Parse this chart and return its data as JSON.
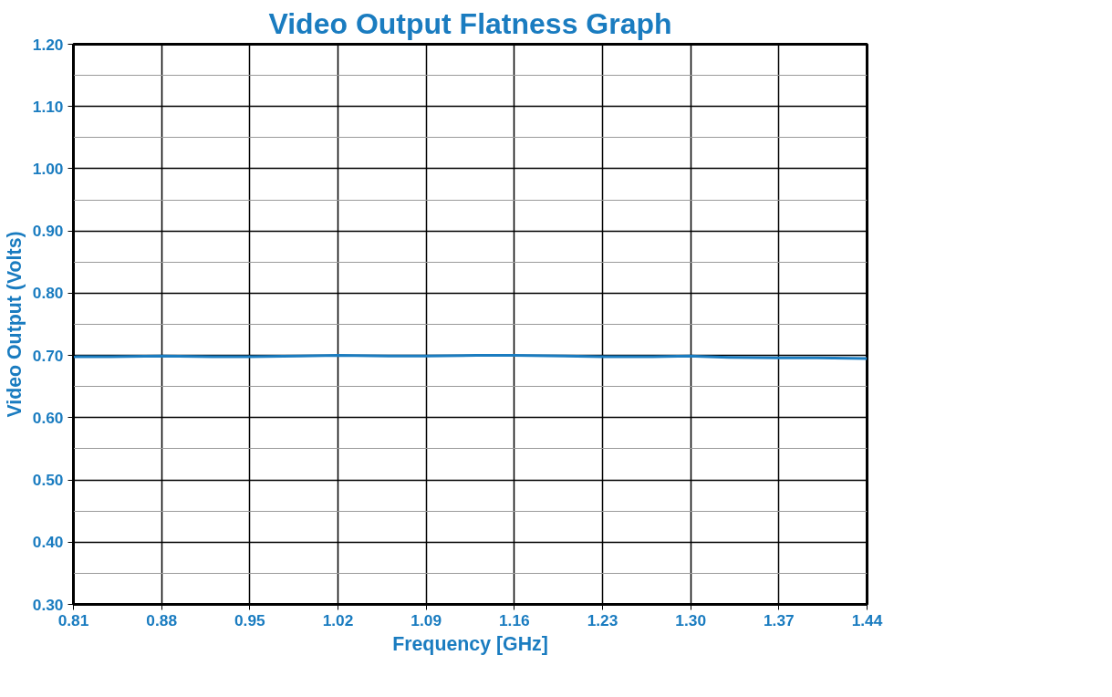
{
  "chart_data": {
    "type": "line",
    "title": "Video Output Flatness Graph",
    "xlabel": "Frequency [GHz]",
    "ylabel": "Video Output (Volts)",
    "x": [
      0.81,
      0.84,
      0.88,
      0.92,
      0.95,
      0.99,
      1.02,
      1.06,
      1.09,
      1.13,
      1.16,
      1.2,
      1.23,
      1.27,
      1.3,
      1.33,
      1.37,
      1.4,
      1.44
    ],
    "series": [
      {
        "color": "#1a7cc0",
        "values": [
          0.698,
          0.698,
          0.699,
          0.698,
          0.698,
          0.699,
          0.7,
          0.699,
          0.699,
          0.7,
          0.7,
          0.699,
          0.698,
          0.698,
          0.699,
          0.697,
          0.696,
          0.696,
          0.695
        ]
      }
    ],
    "xlim": [
      0.81,
      1.44
    ],
    "xticks": [
      0.81,
      0.88,
      0.95,
      1.02,
      1.09,
      1.16,
      1.23,
      {
        "value": 1.3,
        "label": "1.30"
      },
      1.37,
      1.44
    ],
    "ylim": [
      0.3,
      1.2
    ],
    "yticks": [
      {
        "value": 0.3,
        "label": "0.30"
      },
      {
        "value": 0.35,
        "label": null
      },
      {
        "value": 0.4,
        "label": "0.40"
      },
      {
        "value": 0.45,
        "label": null
      },
      {
        "value": 0.5,
        "label": "0.50"
      },
      {
        "value": 0.55,
        "label": null
      },
      {
        "value": 0.6,
        "label": "0.60"
      },
      {
        "value": 0.65,
        "label": null
      },
      {
        "value": 0.7,
        "label": "0.70"
      },
      {
        "value": 0.75,
        "label": null
      },
      {
        "value": 0.8,
        "label": "0.80"
      },
      {
        "value": 0.85,
        "label": null
      },
      {
        "value": 0.9,
        "label": "0.90"
      },
      {
        "value": 0.95,
        "label": null
      },
      {
        "value": 1.0,
        "label": "1.00"
      },
      {
        "value": 1.05,
        "label": null
      },
      {
        "value": 1.1,
        "label": "1.10"
      },
      {
        "value": 1.15,
        "label": null
      },
      {
        "value": 1.2,
        "label": "1.20"
      }
    ],
    "grid": true,
    "marker": "none",
    "line_style": "solid"
  }
}
